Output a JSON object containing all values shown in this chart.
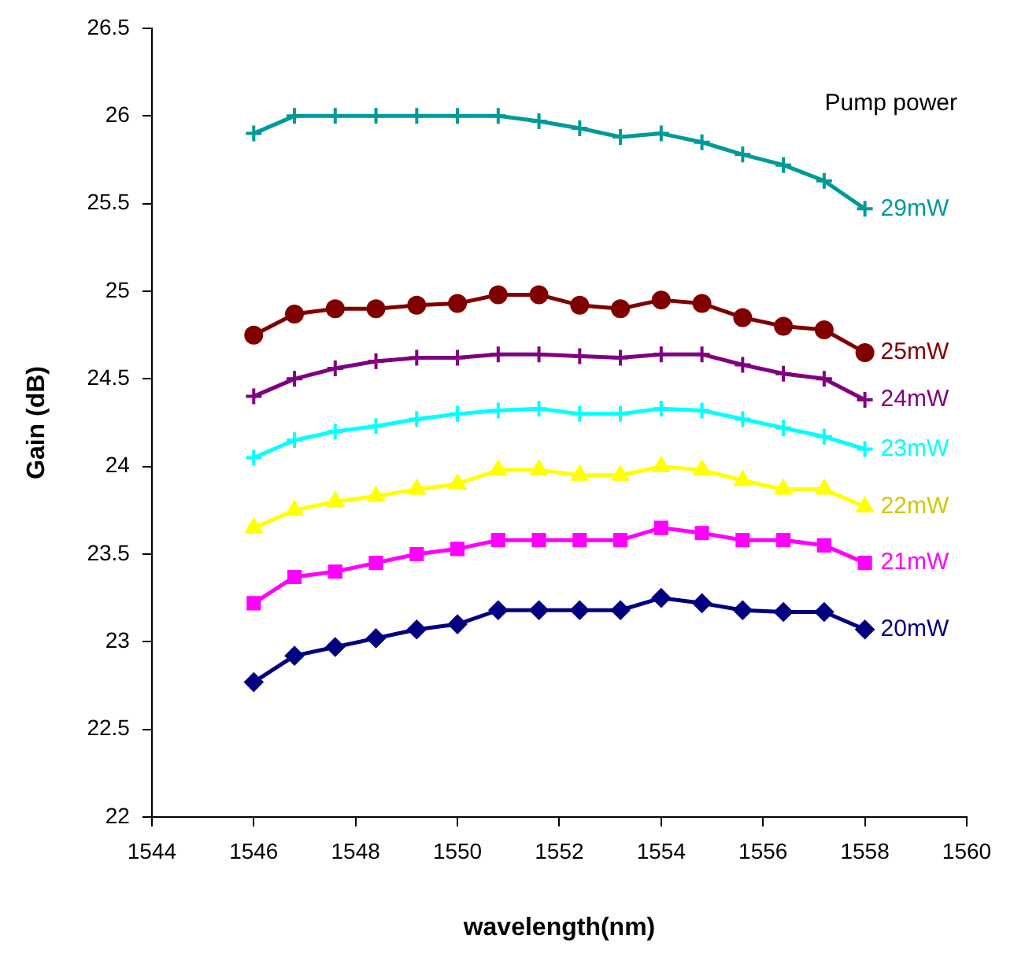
{
  "chart_data": {
    "type": "line",
    "xlabel": "wavelength(nm)",
    "ylabel": "Gain (dB)",
    "x": [
      1546,
      1546.8,
      1547.6,
      1548.4,
      1549.2,
      1550,
      1550.8,
      1551.6,
      1552.4,
      1553.2,
      1554,
      1554.8,
      1555.6,
      1556.4,
      1557.2,
      1558
    ],
    "xlim": [
      1544,
      1560
    ],
    "xticks": [
      1544,
      1546,
      1548,
      1550,
      1552,
      1554,
      1556,
      1558,
      1560
    ],
    "ylim": [
      22,
      26.5
    ],
    "yticks": [
      22,
      22.5,
      23,
      23.5,
      24,
      24.5,
      25,
      25.5,
      26,
      26.5
    ],
    "grid": false,
    "legend": false,
    "line_style": "solid",
    "annotations": [
      "Pump power"
    ],
    "series": [
      {
        "name": "29mW",
        "color": "#009999",
        "marker": "cross",
        "values": [
          25.9,
          26,
          26,
          26,
          26,
          26,
          26,
          25.97,
          25.93,
          25.88,
          25.9,
          25.85,
          25.78,
          25.72,
          25.63,
          25.47
        ]
      },
      {
        "name": "25mW",
        "color": "#800000",
        "marker": "circle",
        "values": [
          24.75,
          24.87,
          24.9,
          24.9,
          24.92,
          24.93,
          24.98,
          24.98,
          24.92,
          24.9,
          24.95,
          24.93,
          24.85,
          24.8,
          24.78,
          24.65
        ]
      },
      {
        "name": "24mW",
        "color": "#800080",
        "marker": "cross",
        "values": [
          24.4,
          24.5,
          24.56,
          24.6,
          24.62,
          24.62,
          24.64,
          24.64,
          24.63,
          24.62,
          24.64,
          24.64,
          24.58,
          24.53,
          24.5,
          24.38
        ]
      },
      {
        "name": "23mW",
        "color": "#00ffff",
        "marker": "cross",
        "values": [
          24.05,
          24.15,
          24.2,
          24.23,
          24.27,
          24.3,
          24.32,
          24.33,
          24.3,
          24.3,
          24.33,
          24.32,
          24.27,
          24.22,
          24.17,
          24.1
        ]
      },
      {
        "name": "22mW",
        "color": "#ffff00",
        "marker": "triangle",
        "values": [
          23.65,
          23.75,
          23.8,
          23.83,
          23.87,
          23.9,
          23.98,
          23.98,
          23.95,
          23.95,
          24.0,
          23.98,
          23.92,
          23.87,
          23.87,
          23.77
        ]
      },
      {
        "name": "21mW",
        "color": "#ff00ff",
        "marker": "square",
        "values": [
          23.22,
          23.37,
          23.4,
          23.45,
          23.5,
          23.53,
          23.58,
          23.58,
          23.58,
          23.58,
          23.65,
          23.62,
          23.58,
          23.58,
          23.55,
          23.45
        ]
      },
      {
        "name": "20mW",
        "color": "#000080",
        "marker": "diamond",
        "values": [
          22.77,
          22.92,
          22.97,
          23.02,
          23.07,
          23.1,
          23.18,
          23.18,
          23.18,
          23.18,
          23.25,
          23.22,
          23.18,
          23.17,
          23.17,
          23.07
        ]
      }
    ]
  }
}
